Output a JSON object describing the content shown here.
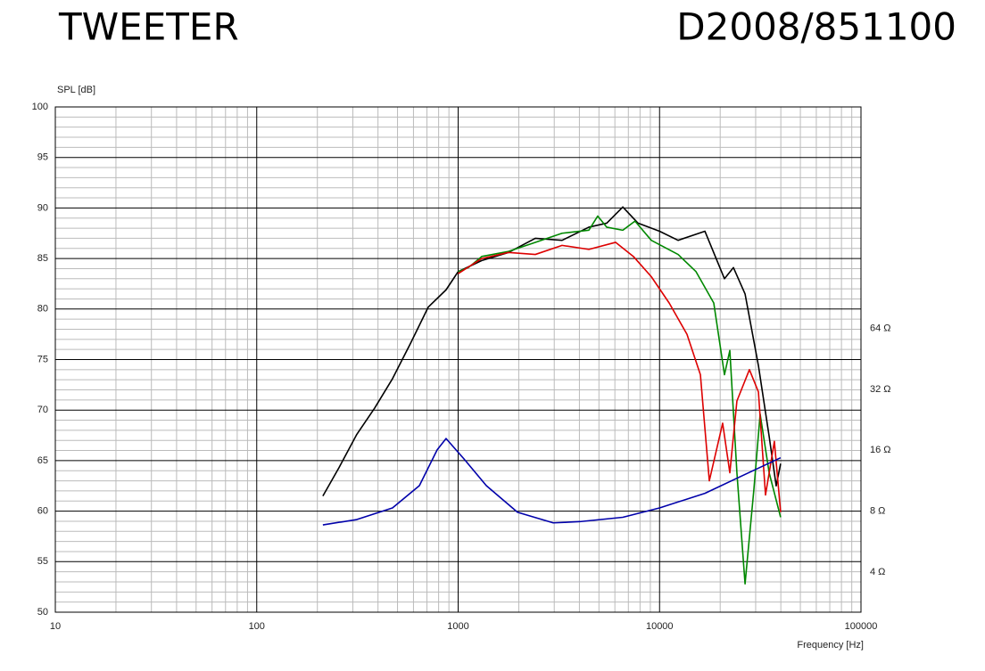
{
  "chart_data": {
    "type": "line",
    "title": "TWEETER",
    "subtitle": "D2008/851100",
    "y_label": "SPL [dB]",
    "x_label": "Frequency [Hz]",
    "xlim": [
      10,
      100000
    ],
    "xticks": [
      10,
      100,
      1000,
      10000,
      100000
    ],
    "xscale": "log",
    "ylim": [
      50,
      100
    ],
    "yticks": [
      50,
      55,
      60,
      65,
      70,
      75,
      80,
      85,
      90,
      95,
      100
    ],
    "y2lim": [
      2.53,
      800
    ],
    "y2scale": "log",
    "y2ticks": [
      {
        "value": 4,
        "label": "4 Ω"
      },
      {
        "value": 8,
        "label": "8 Ω"
      },
      {
        "value": 16,
        "label": "16 Ω"
      },
      {
        "value": 32,
        "label": "32 Ω"
      },
      {
        "value": 64,
        "label": "64 Ω"
      }
    ],
    "grid": true,
    "series": [
      {
        "color": "#000000",
        "x": [
          213,
          256,
          314,
          385,
          472,
          580,
          711,
          871,
          1000,
          1310,
          1778,
          2416,
          3281,
          4456,
          5467,
          6569,
          7817,
          10000,
          12360,
          16790,
          21000,
          23270,
          26570,
          30960,
          35000,
          37930,
          39900
        ],
        "values": [
          61.5,
          64.3,
          67.6,
          70.2,
          73.1,
          76.6,
          80.2,
          81.9,
          83.7,
          84.8,
          85.6,
          87.0,
          86.8,
          88.1,
          88.5,
          90.1,
          88.5,
          87.7,
          86.8,
          87.7,
          83.0,
          84.1,
          81.5,
          74.4,
          67.4,
          62.5,
          64.7
        ]
      },
      {
        "color": "#008800",
        "x": [
          1000,
          1124,
          1310,
          1778,
          2416,
          3281,
          4456,
          4932,
          5467,
          6569,
          7550,
          9100,
          12360,
          15170,
          18580,
          21000,
          22330,
          24210,
          26570,
          29380,
          31580,
          35000,
          39900
        ],
        "values": [
          83.7,
          84.1,
          85.2,
          85.7,
          86.6,
          87.5,
          87.8,
          89.2,
          88.1,
          87.8,
          88.7,
          86.8,
          85.4,
          83.7,
          80.6,
          73.5,
          75.9,
          63.8,
          52.8,
          62.1,
          69.6,
          63.8,
          59.4
        ]
      },
      {
        "color": "#dd0000",
        "x": [
          1000,
          1310,
          1778,
          2416,
          3281,
          4456,
          6053,
          7416,
          9100,
          11160,
          13680,
          15950,
          17660,
          20570,
          22330,
          24210,
          27930,
          30960,
          33570,
          37150,
          39900
        ],
        "values": [
          83.5,
          85.0,
          85.6,
          85.4,
          86.3,
          85.9,
          86.6,
          85.2,
          83.2,
          80.6,
          77.5,
          73.5,
          63.0,
          68.7,
          63.8,
          70.9,
          74.0,
          71.8,
          61.6,
          66.9,
          59.9
        ]
      },
      {
        "color": "#0000aa",
        "axis": "y2",
        "x": [
          213,
          314,
          472,
          642,
          787,
          871,
          1069,
          1380,
          1972,
          2965,
          4024,
          6569,
          10000,
          16790,
          24940,
          39900
        ],
        "values": [
          6.84,
          7.27,
          8.3,
          10.7,
          16.1,
          18.3,
          14.5,
          10.7,
          7.9,
          7.0,
          7.1,
          7.46,
          8.3,
          9.8,
          11.8,
          14.7
        ]
      }
    ]
  }
}
